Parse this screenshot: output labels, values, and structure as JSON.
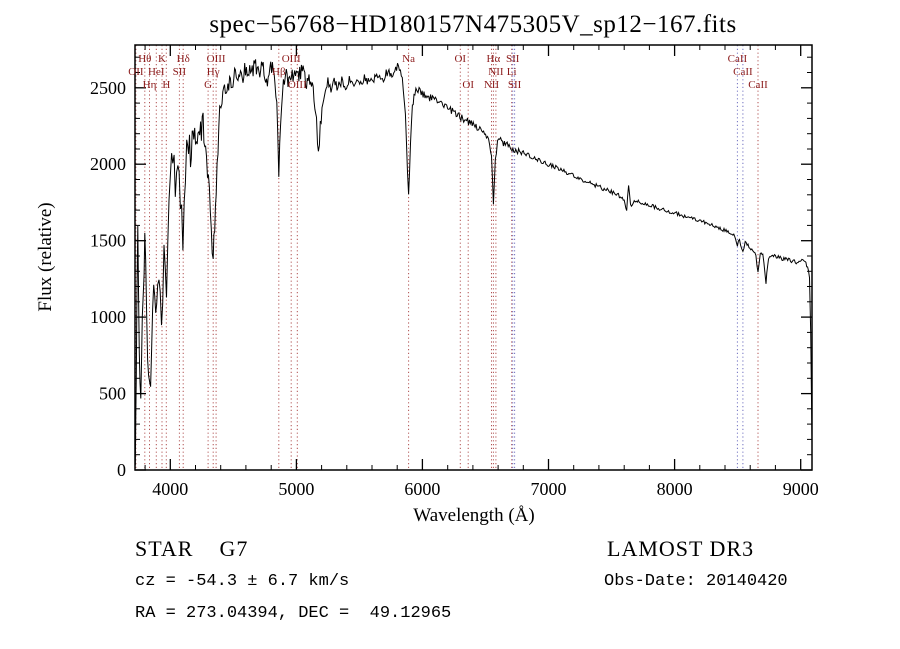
{
  "annotations": {
    "star_class": "STAR    G7",
    "survey": "LAMOST DR3",
    "cz": "cz = -54.3 ± 6.7 km/s",
    "obs_date": "Obs-Date: 20140420",
    "ra_dec": "RA = 273.04394, DEC =  49.12965"
  },
  "chart_data": {
    "type": "line",
    "title": "spec−56768−HD180157N475305V_sp12−167.fits",
    "xlabel": "Wavelength (Å)",
    "ylabel": "Flux (relative)",
    "xlim": [
      3720,
      9090
    ],
    "ylim": [
      0,
      2780
    ],
    "xticks": [
      4000,
      5000,
      6000,
      7000,
      8000,
      9000
    ],
    "yticks": [
      0,
      500,
      1000,
      1500,
      2000,
      2500
    ],
    "grid": false,
    "legend": "none",
    "line_color": "#000000",
    "label_color": "#8b1a1a",
    "spectral_lines": [
      {
        "wavelength": 3727,
        "label": "OII",
        "row": 2,
        "color": "#b05050"
      },
      {
        "wavelength": 3798,
        "label": "Hθ",
        "row": 1,
        "color": "#b05050"
      },
      {
        "wavelength": 3835,
        "label": "Hη",
        "row": 3,
        "color": "#b05050"
      },
      {
        "wavelength": 3889,
        "label": "HeI",
        "row": 2,
        "color": "#b05050"
      },
      {
        "wavelength": 3934,
        "label": "K",
        "row": 1,
        "color": "#b05050"
      },
      {
        "wavelength": 3968,
        "label": "H",
        "row": 3,
        "color": "#b05050"
      },
      {
        "wavelength": 4072,
        "label": "SII",
        "row": 2,
        "color": "#b05050"
      },
      {
        "wavelength": 4102,
        "label": "Hδ",
        "row": 1,
        "color": "#b05050"
      },
      {
        "wavelength": 4300,
        "label": "G",
        "row": 3,
        "color": "#b05050"
      },
      {
        "wavelength": 4340,
        "label": "Hγ",
        "row": 2,
        "color": "#b05050"
      },
      {
        "wavelength": 4363,
        "label": "OIII",
        "row": 1,
        "color": "#b05050"
      },
      {
        "wavelength": 4861,
        "label": "Hβ",
        "row": 2,
        "color": "#b05050"
      },
      {
        "wavelength": 4959,
        "label": "OIII",
        "row": 1,
        "color": "#b05050"
      },
      {
        "wavelength": 5007,
        "label": "OIII",
        "row": 3,
        "color": "#b05050"
      },
      {
        "wavelength": 5890,
        "label": "Na",
        "row": 1,
        "color": "#b05050"
      },
      {
        "wavelength": 6300,
        "label": "OI",
        "row": 1,
        "color": "#b05050"
      },
      {
        "wavelength": 6363,
        "label": "OI",
        "row": 3,
        "color": "#b05050"
      },
      {
        "wavelength": 6548,
        "label": "NII",
        "row": 3,
        "color": "#b05050"
      },
      {
        "wavelength": 6563,
        "label": "Hα",
        "row": 1,
        "color": "#b05050"
      },
      {
        "wavelength": 6583,
        "label": "NII",
        "row": 2,
        "color": "#b05050"
      },
      {
        "wavelength": 6708,
        "label": "Li",
        "row": 2,
        "color": "#b05050"
      },
      {
        "wavelength": 6716,
        "label": "SII",
        "row": 1,
        "color": "#7070c0"
      },
      {
        "wavelength": 6731,
        "label": "SII",
        "row": 3,
        "color": "#7070c0"
      },
      {
        "wavelength": 8498,
        "label": "CaII",
        "row": 1,
        "color": "#7070c0"
      },
      {
        "wavelength": 8542,
        "label": "CaII",
        "row": 2,
        "color": "#7070c0"
      },
      {
        "wavelength": 8662,
        "label": "CaII",
        "row": 3,
        "color": "#b05050"
      }
    ],
    "noise_regions": [
      {
        "from": 3720,
        "to": 4350,
        "amp": 105
      },
      {
        "from": 4350,
        "to": 5200,
        "amp": 55
      },
      {
        "from": 5200,
        "to": 6000,
        "amp": 30
      },
      {
        "from": 6000,
        "to": 6800,
        "amp": 22
      },
      {
        "from": 6800,
        "to": 7600,
        "amp": 14
      },
      {
        "from": 7600,
        "to": 8450,
        "amp": 12
      },
      {
        "from": 8450,
        "to": 9095,
        "amp": 13
      }
    ],
    "series": [
      {
        "name": "spectrum",
        "points": [
          [
            3722,
            30
          ],
          [
            3726,
            250
          ],
          [
            3730,
            620
          ],
          [
            3734,
            1050
          ],
          [
            3738,
            1400
          ],
          [
            3742,
            1520
          ],
          [
            3748,
            1150
          ],
          [
            3754,
            820
          ],
          [
            3760,
            640
          ],
          [
            3766,
            560
          ],
          [
            3772,
            700
          ],
          [
            3778,
            900
          ],
          [
            3785,
            1150
          ],
          [
            3792,
            1380
          ],
          [
            3798,
            1470
          ],
          [
            3805,
            1300
          ],
          [
            3812,
            1050
          ],
          [
            3820,
            800
          ],
          [
            3828,
            620
          ],
          [
            3836,
            540
          ],
          [
            3844,
            650
          ],
          [
            3852,
            820
          ],
          [
            3860,
            1020
          ],
          [
            3868,
            1150
          ],
          [
            3876,
            1060
          ],
          [
            3884,
            950
          ],
          [
            3892,
            1040
          ],
          [
            3900,
            1160
          ],
          [
            3910,
            1290
          ],
          [
            3920,
            1180
          ],
          [
            3930,
            1020
          ],
          [
            3940,
            1180
          ],
          [
            3950,
            1420
          ],
          [
            3960,
            1310
          ],
          [
            3970,
            1230
          ],
          [
            3980,
            1520
          ],
          [
            3990,
            1720
          ],
          [
            4000,
            1880
          ],
          [
            4010,
            2020
          ],
          [
            4020,
            2110
          ],
          [
            4030,
            1960
          ],
          [
            4040,
            1820
          ],
          [
            4050,
            1930
          ],
          [
            4060,
            2060
          ],
          [
            4070,
            1890
          ],
          [
            4080,
            1760
          ],
          [
            4090,
            1640
          ],
          [
            4100,
            1490
          ],
          [
            4110,
            1700
          ],
          [
            4120,
            1920
          ],
          [
            4130,
            2060
          ],
          [
            4145,
            2150
          ],
          [
            4160,
            2080
          ],
          [
            4180,
            2190
          ],
          [
            4200,
            2130
          ],
          [
            4220,
            2240
          ],
          [
            4240,
            2190
          ],
          [
            4260,
            2280
          ],
          [
            4280,
            2170
          ],
          [
            4295,
            1990
          ],
          [
            4310,
            1800
          ],
          [
            4325,
            1580
          ],
          [
            4340,
            1330
          ],
          [
            4352,
            1600
          ],
          [
            4364,
            1850
          ],
          [
            4378,
            2120
          ],
          [
            4392,
            2330
          ],
          [
            4410,
            2420
          ],
          [
            4430,
            2510
          ],
          [
            4450,
            2460
          ],
          [
            4470,
            2560
          ],
          [
            4490,
            2500
          ],
          [
            4510,
            2590
          ],
          [
            4530,
            2540
          ],
          [
            4550,
            2610
          ],
          [
            4570,
            2560
          ],
          [
            4590,
            2640
          ],
          [
            4610,
            2580
          ],
          [
            4630,
            2660
          ],
          [
            4650,
            2600
          ],
          [
            4670,
            2680
          ],
          [
            4690,
            2620
          ],
          [
            4710,
            2590
          ],
          [
            4730,
            2640
          ],
          [
            4750,
            2580
          ],
          [
            4770,
            2540
          ],
          [
            4790,
            2610
          ],
          [
            4810,
            2650
          ],
          [
            4830,
            2560
          ],
          [
            4845,
            2380
          ],
          [
            4861,
            1900
          ],
          [
            4875,
            2280
          ],
          [
            4890,
            2480
          ],
          [
            4905,
            2540
          ],
          [
            4920,
            2580
          ],
          [
            4940,
            2520
          ],
          [
            4960,
            2590
          ],
          [
            4980,
            2540
          ],
          [
            5000,
            2620
          ],
          [
            5020,
            2570
          ],
          [
            5040,
            2630
          ],
          [
            5060,
            2580
          ],
          [
            5080,
            2540
          ],
          [
            5100,
            2590
          ],
          [
            5120,
            2530
          ],
          [
            5140,
            2440
          ],
          [
            5160,
            2260
          ],
          [
            5175,
            2060
          ],
          [
            5190,
            2230
          ],
          [
            5210,
            2410
          ],
          [
            5230,
            2500
          ],
          [
            5250,
            2550
          ],
          [
            5275,
            2490
          ],
          [
            5300,
            2540
          ],
          [
            5330,
            2500
          ],
          [
            5360,
            2550
          ],
          [
            5390,
            2510
          ],
          [
            5420,
            2555
          ],
          [
            5450,
            2515
          ],
          [
            5480,
            2560
          ],
          [
            5510,
            2530
          ],
          [
            5540,
            2575
          ],
          [
            5570,
            2540
          ],
          [
            5600,
            2580
          ],
          [
            5630,
            2550
          ],
          [
            5660,
            2595
          ],
          [
            5690,
            2560
          ],
          [
            5720,
            2605
          ],
          [
            5750,
            2575
          ],
          [
            5780,
            2620
          ],
          [
            5810,
            2635
          ],
          [
            5840,
            2560
          ],
          [
            5865,
            2330
          ],
          [
            5890,
            1790
          ],
          [
            5905,
            2140
          ],
          [
            5920,
            2380
          ],
          [
            5940,
            2470
          ],
          [
            5965,
            2490
          ],
          [
            5990,
            2465
          ],
          [
            6020,
            2450
          ],
          [
            6050,
            2430
          ],
          [
            6080,
            2440
          ],
          [
            6110,
            2415
          ],
          [
            6140,
            2400
          ],
          [
            6170,
            2385
          ],
          [
            6200,
            2370
          ],
          [
            6230,
            2350
          ],
          [
            6260,
            2335
          ],
          [
            6290,
            2315
          ],
          [
            6320,
            2300
          ],
          [
            6350,
            2285
          ],
          [
            6380,
            2270
          ],
          [
            6410,
            2255
          ],
          [
            6440,
            2235
          ],
          [
            6470,
            2220
          ],
          [
            6500,
            2200
          ],
          [
            6525,
            2160
          ],
          [
            6548,
            2040
          ],
          [
            6563,
            1760
          ],
          [
            6578,
            2030
          ],
          [
            6595,
            2140
          ],
          [
            6620,
            2155
          ],
          [
            6650,
            2135
          ],
          [
            6680,
            2120
          ],
          [
            6710,
            2105
          ],
          [
            6740,
            2095
          ],
          [
            6770,
            2085
          ],
          [
            6800,
            2075
          ],
          [
            6830,
            2065
          ],
          [
            6860,
            2045
          ],
          [
            6890,
            2035
          ],
          [
            6920,
            2025
          ],
          [
            6950,
            2015
          ],
          [
            6980,
            2005
          ],
          [
            7010,
            1995
          ],
          [
            7050,
            1985
          ],
          [
            7090,
            1968
          ],
          [
            7130,
            1952
          ],
          [
            7170,
            1936
          ],
          [
            7210,
            1922
          ],
          [
            7250,
            1905
          ],
          [
            7290,
            1890
          ],
          [
            7330,
            1875
          ],
          [
            7370,
            1862
          ],
          [
            7410,
            1850
          ],
          [
            7450,
            1835
          ],
          [
            7490,
            1822
          ],
          [
            7530,
            1808
          ],
          [
            7570,
            1790
          ],
          [
            7600,
            1755
          ],
          [
            7620,
            1705
          ],
          [
            7635,
            1865
          ],
          [
            7650,
            1730
          ],
          [
            7680,
            1758
          ],
          [
            7720,
            1752
          ],
          [
            7760,
            1742
          ],
          [
            7800,
            1732
          ],
          [
            7840,
            1720
          ],
          [
            7880,
            1710
          ],
          [
            7920,
            1700
          ],
          [
            7960,
            1690
          ],
          [
            8000,
            1682
          ],
          [
            8040,
            1670
          ],
          [
            8080,
            1660
          ],
          [
            8120,
            1650
          ],
          [
            8160,
            1640
          ],
          [
            8200,
            1630
          ],
          [
            8240,
            1618
          ],
          [
            8280,
            1606
          ],
          [
            8320,
            1594
          ],
          [
            8360,
            1580
          ],
          [
            8400,
            1566
          ],
          [
            8440,
            1552
          ],
          [
            8470,
            1535
          ],
          [
            8498,
            1470
          ],
          [
            8515,
            1505
          ],
          [
            8542,
            1425
          ],
          [
            8560,
            1485
          ],
          [
            8590,
            1465
          ],
          [
            8620,
            1440
          ],
          [
            8645,
            1400
          ],
          [
            8662,
            1285
          ],
          [
            8680,
            1420
          ],
          [
            8700,
            1400
          ],
          [
            8725,
            1230
          ],
          [
            8745,
            1390
          ],
          [
            8770,
            1405
          ],
          [
            8800,
            1398
          ],
          [
            8830,
            1390
          ],
          [
            8860,
            1382
          ],
          [
            8890,
            1376
          ],
          [
            8920,
            1370
          ],
          [
            8950,
            1364
          ],
          [
            8980,
            1360
          ],
          [
            9010,
            1375
          ],
          [
            9035,
            1355
          ],
          [
            9055,
            1330
          ],
          [
            9070,
            1260
          ],
          [
            9080,
            900
          ],
          [
            9086,
            450
          ],
          [
            9090,
            180
          ]
        ]
      }
    ]
  }
}
